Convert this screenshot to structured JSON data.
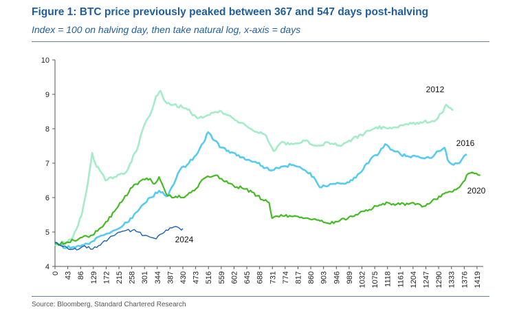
{
  "header": {
    "title": "Figure 1: BTC price previously peaked between 367 and 547 days post-halving",
    "subtitle": "Index = 100 on halving day, then take natural log, x-axis = days"
  },
  "footer": {
    "source": "Source: Bloomberg, Standard Chartered Research"
  },
  "colors": {
    "accent": "#1f5e9e",
    "s2012": "#a3ecc7",
    "s2016": "#55ccee",
    "s2020": "#44bb22",
    "s2024": "#1a60b0"
  },
  "chart_data": {
    "type": "line",
    "title": "Figure 1: BTC price previously peaked between 367 and 547 days post-halving",
    "subtitle": "Index = 100 on halving day, then take natural log, x-axis = days",
    "xlabel": "",
    "ylabel": "",
    "ylim": [
      4,
      10
    ],
    "xlim": [
      0,
      1440
    ],
    "grid": false,
    "legend": "none",
    "yticks": [
      "4",
      "5",
      "6",
      "7",
      "8",
      "9",
      "10"
    ],
    "xticks": [
      "0",
      "43",
      "86",
      "129",
      "172",
      "215",
      "258",
      "301",
      "344",
      "387",
      "430",
      "473",
      "516",
      "559",
      "602",
      "645",
      "688",
      "731",
      "774",
      "817",
      "860",
      "903",
      "946",
      "989",
      "1032",
      "1075",
      "1118",
      "1161",
      "1204",
      "1247",
      "1290",
      "1333",
      "1376",
      "1419"
    ],
    "series": [
      {
        "name": "2012",
        "x": [
          0,
          30,
          60,
          90,
          110,
          125,
          135,
          150,
          170,
          200,
          240,
          280,
          300,
          320,
          340,
          355,
          370,
          400,
          440,
          480,
          520,
          560,
          600,
          640,
          680,
          710,
          735,
          760,
          800,
          840,
          880,
          920,
          960,
          1000,
          1040,
          1080,
          1120,
          1160,
          1200,
          1240,
          1280,
          1300,
          1315,
          1330,
          1340
        ],
        "y": [
          4.6,
          4.7,
          4.85,
          5.5,
          6.4,
          7.3,
          7.0,
          6.8,
          6.5,
          6.6,
          6.75,
          7.5,
          8.1,
          8.4,
          8.95,
          9.1,
          8.8,
          8.7,
          8.6,
          8.3,
          8.4,
          8.5,
          8.3,
          8.1,
          7.9,
          7.8,
          7.35,
          7.6,
          7.55,
          7.65,
          7.5,
          7.6,
          7.5,
          7.7,
          7.85,
          8.05,
          8.0,
          8.1,
          8.15,
          8.2,
          8.25,
          8.45,
          8.7,
          8.6,
          8.55
        ]
      },
      {
        "name": "2016",
        "x": [
          0,
          40,
          80,
          120,
          160,
          200,
          230,
          260,
          290,
          320,
          350,
          380,
          400,
          420,
          450,
          480,
          500,
          515,
          530,
          560,
          600,
          640,
          680,
          720,
          760,
          800,
          840,
          870,
          890,
          920,
          960,
          1000,
          1030,
          1060,
          1090,
          1110,
          1140,
          1180,
          1220,
          1260,
          1290,
          1310,
          1320,
          1340,
          1360,
          1375,
          1385
        ],
        "y": [
          4.65,
          4.55,
          4.6,
          4.7,
          4.9,
          5.05,
          5.2,
          5.4,
          5.75,
          6.0,
          6.2,
          6.05,
          6.4,
          6.8,
          7.0,
          7.3,
          7.6,
          7.9,
          7.7,
          7.45,
          7.3,
          7.1,
          7.0,
          6.8,
          6.9,
          6.95,
          6.8,
          6.6,
          6.3,
          6.35,
          6.4,
          6.5,
          6.75,
          7.1,
          7.3,
          7.55,
          7.35,
          7.2,
          7.2,
          7.15,
          7.35,
          7.45,
          7.1,
          6.95,
          7.0,
          7.2,
          7.25
        ]
      },
      {
        "name": "2020",
        "x": [
          0,
          40,
          80,
          120,
          160,
          200,
          230,
          260,
          290,
          320,
          335,
          350,
          365,
          380,
          400,
          440,
          480,
          500,
          520,
          540,
          560,
          600,
          640,
          680,
          720,
          730,
          760,
          800,
          840,
          880,
          920,
          960,
          1000,
          1040,
          1080,
          1120,
          1160,
          1200,
          1240,
          1280,
          1320,
          1360,
          1390,
          1410,
          1430
        ],
        "y": [
          4.65,
          4.7,
          4.8,
          4.9,
          5.15,
          5.6,
          5.95,
          6.3,
          6.5,
          6.55,
          6.4,
          6.6,
          6.3,
          6.05,
          6.0,
          6.05,
          6.3,
          6.55,
          6.6,
          6.65,
          6.55,
          6.35,
          6.25,
          6.05,
          5.85,
          5.4,
          5.5,
          5.45,
          5.4,
          5.35,
          5.25,
          5.35,
          5.45,
          5.6,
          5.75,
          5.85,
          5.8,
          5.85,
          5.75,
          5.95,
          6.15,
          6.3,
          6.7,
          6.7,
          6.65
        ]
      },
      {
        "name": "2024",
        "x": [
          0,
          20,
          40,
          60,
          80,
          100,
          120,
          140,
          160,
          180,
          200,
          220,
          240,
          260,
          280,
          300,
          320,
          340,
          360,
          380,
          400,
          420,
          430
        ],
        "y": [
          4.7,
          4.6,
          4.55,
          4.5,
          4.5,
          4.6,
          4.5,
          4.55,
          4.7,
          4.8,
          4.9,
          5.0,
          5.05,
          5.05,
          5.0,
          4.9,
          4.85,
          4.8,
          4.95,
          5.05,
          5.15,
          5.1,
          5.1
        ]
      }
    ]
  }
}
